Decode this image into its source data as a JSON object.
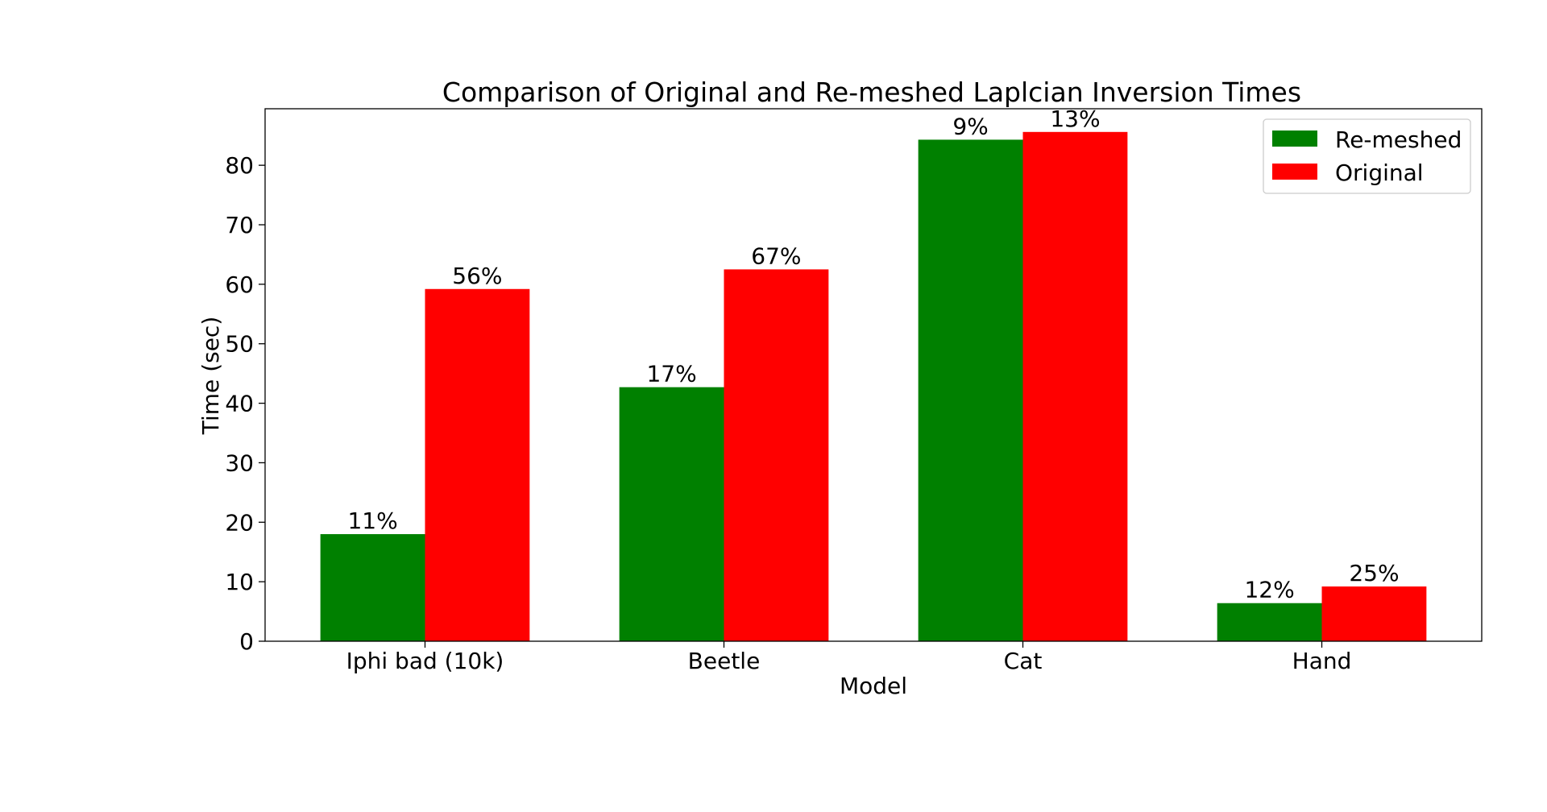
{
  "chart_data": {
    "type": "bar",
    "title": "Comparison of Original and Re-meshed Laplcian Inversion Times",
    "xlabel": "Model",
    "ylabel": "Time (sec)",
    "categories": [
      "Iphi bad (10k)",
      "Beetle",
      "Cat",
      "Hand"
    ],
    "series": [
      {
        "name": "Re-meshed",
        "color": "#008000",
        "values": [
          18.0,
          42.7,
          84.3,
          6.4
        ],
        "labels": [
          "11%",
          "17%",
          "9%",
          "12%"
        ]
      },
      {
        "name": "Original",
        "color": "#ff0000",
        "values": [
          59.2,
          62.5,
          85.6,
          9.2
        ],
        "labels": [
          "56%",
          "67%",
          "13%",
          "25%"
        ]
      }
    ],
    "ylim": [
      0,
      90
    ],
    "yticks": [
      0,
      10,
      20,
      30,
      40,
      50,
      60,
      70,
      80
    ],
    "grid": false,
    "legend_position": "top-right"
  }
}
